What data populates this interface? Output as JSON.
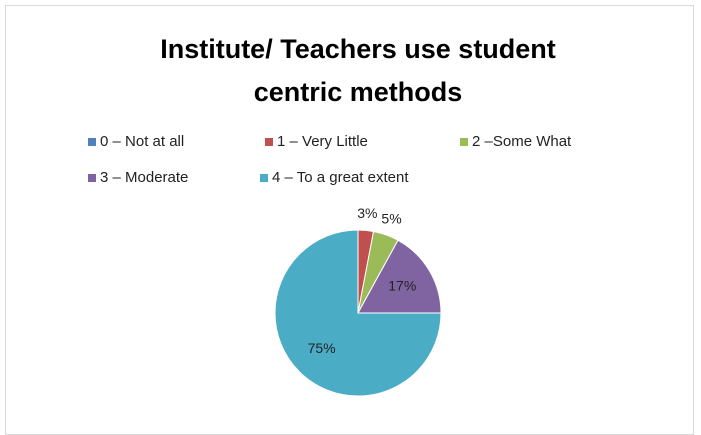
{
  "chart_data": {
    "type": "pie",
    "title": "Institute/ Teachers use student centric methods",
    "categories": [
      "0 – Not at all",
      "1 – Very Little",
      "2 –Some What",
      "3 – Moderate",
      "4 – To a great extent"
    ],
    "values": [
      0,
      3,
      5,
      17,
      75
    ],
    "value_labels": [
      null,
      "3%",
      "5%",
      "17%",
      "75%"
    ],
    "colors": [
      "#4f81bd",
      "#c0504d",
      "#9bbb59",
      "#8064a2",
      "#4bacc6"
    ],
    "legend": "top"
  }
}
